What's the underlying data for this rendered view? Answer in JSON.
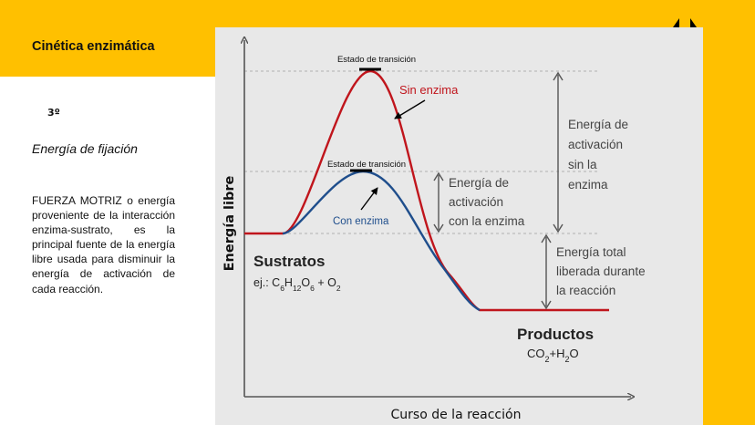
{
  "slide": {
    "title": "Cinética enzimática",
    "number": "3º",
    "subtitle": "Energía de fijación",
    "body": "FUERZA MOTRIZ o energía proveniente de la interacción enzima-sustrato, es la principal fuente de la energía libre usada para disminuir la energía de activación de cada reacción."
  },
  "diagram": {
    "y_axis_label": "Energía libre",
    "x_axis_label": "Curso de la reacción",
    "transition_state_uncatalyzed": "Estado de transición",
    "transition_state_catalyzed": "Estado de transición",
    "curve_uncatalyzed": "Sin enzima",
    "curve_catalyzed": "Con enzima",
    "activation_with_enzyme": [
      "Energía de",
      "activación",
      "con la enzima"
    ],
    "activation_without_enzyme": [
      "Energía de",
      "activación",
      "sin la",
      "enzima"
    ],
    "total_energy": [
      "Energía total",
      "liberada durante",
      "la reacción"
    ],
    "substrates_label": "Sustratos",
    "substrates_example": "ej.: C6H12O6 + O2",
    "products_label": "Productos",
    "products_formula": "CO2+H2O"
  },
  "colors": {
    "accent": "#ffc000",
    "uncatalyzed_curve": "#c0151c",
    "catalyzed_curve": "#1f4e8c",
    "axis": "#555555"
  },
  "icons": {
    "logo": "double-up-arrow-logo"
  }
}
